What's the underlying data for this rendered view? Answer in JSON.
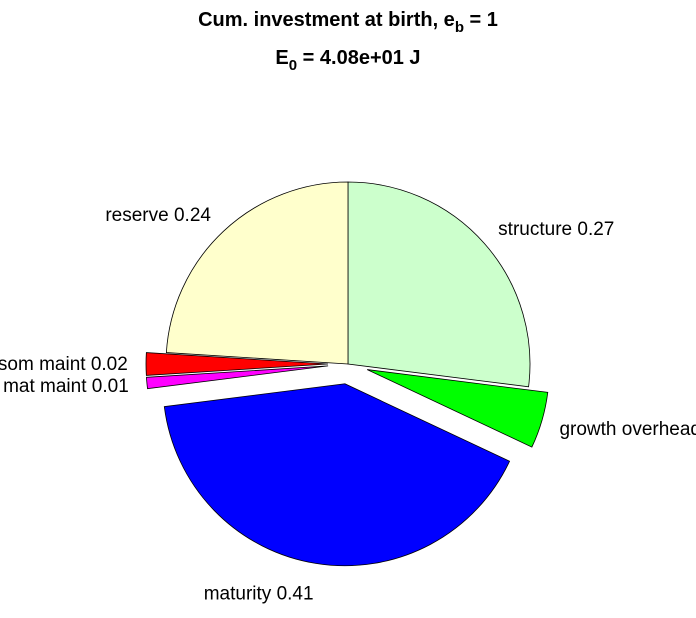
{
  "chart_data": {
    "type": "pie",
    "title": [
      "Cum. investment at birth, e",
      "b",
      " = 1"
    ],
    "subtitle": [
      "E",
      "0",
      " = 4.08e+01 J"
    ],
    "categories": [
      "structure",
      "growth overhead",
      "maturity",
      "mat maint",
      "som maint",
      "reserve"
    ],
    "values": [
      0.27,
      0.05,
      0.41,
      0.01,
      0.02,
      0.24
    ],
    "colors": [
      "#ccffcc",
      "#00ff00",
      "#0000ff",
      "#ff00ff",
      "#ff0000",
      "#ffffcc"
    ],
    "explode": [
      false,
      true,
      true,
      true,
      true,
      false
    ]
  }
}
